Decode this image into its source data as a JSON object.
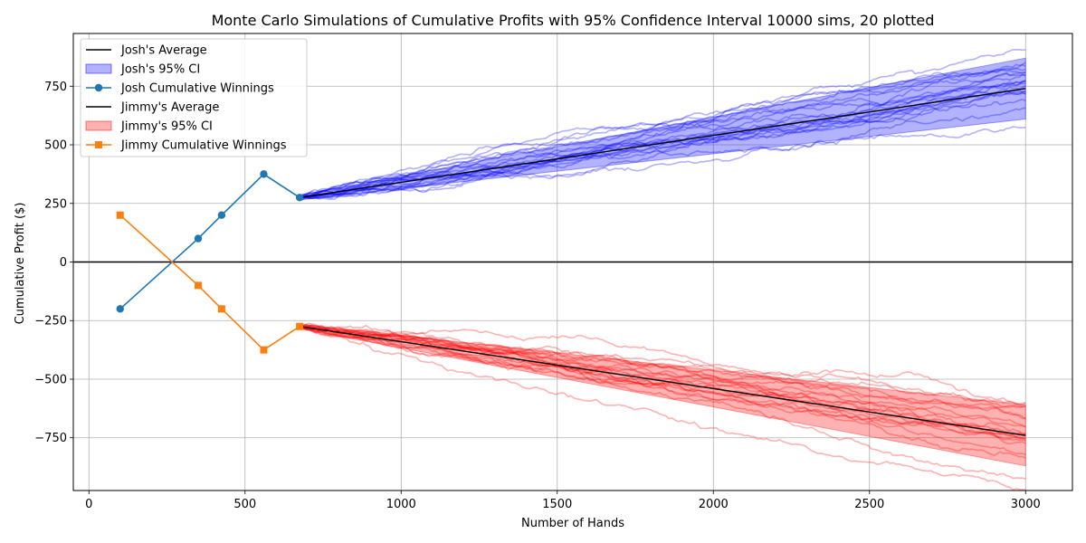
{
  "chart_data": {
    "type": "line",
    "title": "Monte Carlo Simulations of Cumulative Profits with 95% Confidence Interval 10000 sims, 20 plotted",
    "xlabel": "Number of Hands",
    "ylabel": "Cumulative Profit ($)",
    "xlim": [
      -50,
      3150
    ],
    "ylim": [
      -975,
      975
    ],
    "xticks": [
      0,
      500,
      1000,
      1500,
      2000,
      2500,
      3000
    ],
    "xtick_labels": [
      "0",
      "500",
      "1000",
      "1500",
      "2000",
      "2500",
      "3000"
    ],
    "yticks": [
      -750,
      -500,
      -250,
      0,
      250,
      500,
      750
    ],
    "ytick_labels": [
      "−750",
      "−500",
      "−250",
      "0",
      "250",
      "500",
      "750"
    ],
    "grid": true,
    "legend_position": "top-left",
    "zero_line": 0,
    "sim_count": 20,
    "sim_start_x": 675,
    "sim_end_x": 3000,
    "series": [
      {
        "name": "Josh's Average",
        "kind": "average",
        "color": "#000000",
        "x": [
          675,
          3000
        ],
        "y": [
          275,
          740
        ]
      },
      {
        "name": "Josh's 95% CI",
        "kind": "ci",
        "color": "#0000ff",
        "x": [
          675,
          3000
        ],
        "lower": [
          265,
          610
        ],
        "upper": [
          285,
          870
        ]
      },
      {
        "name": "Josh Cumulative Winnings",
        "kind": "observed",
        "color": "#1f77b4",
        "marker": "circle",
        "x": [
          100,
          350,
          425,
          560,
          675
        ],
        "y": [
          -200,
          100,
          200,
          375,
          275
        ]
      },
      {
        "name": "Jimmy's Average",
        "kind": "average",
        "color": "#000000",
        "x": [
          675,
          3000
        ],
        "y": [
          -275,
          -740
        ]
      },
      {
        "name": "Jimmy's 95% CI",
        "kind": "ci",
        "color": "#ff0000",
        "x": [
          675,
          3000
        ],
        "lower": [
          -285,
          -870
        ],
        "upper": [
          -265,
          -610
        ]
      },
      {
        "name": "Jimmy Cumulative Winnings",
        "kind": "observed",
        "color": "#ff7f0e",
        "marker": "square",
        "x": [
          100,
          350,
          425,
          560,
          675
        ],
        "y": [
          200,
          -100,
          -200,
          -375,
          -275
        ]
      }
    ]
  }
}
